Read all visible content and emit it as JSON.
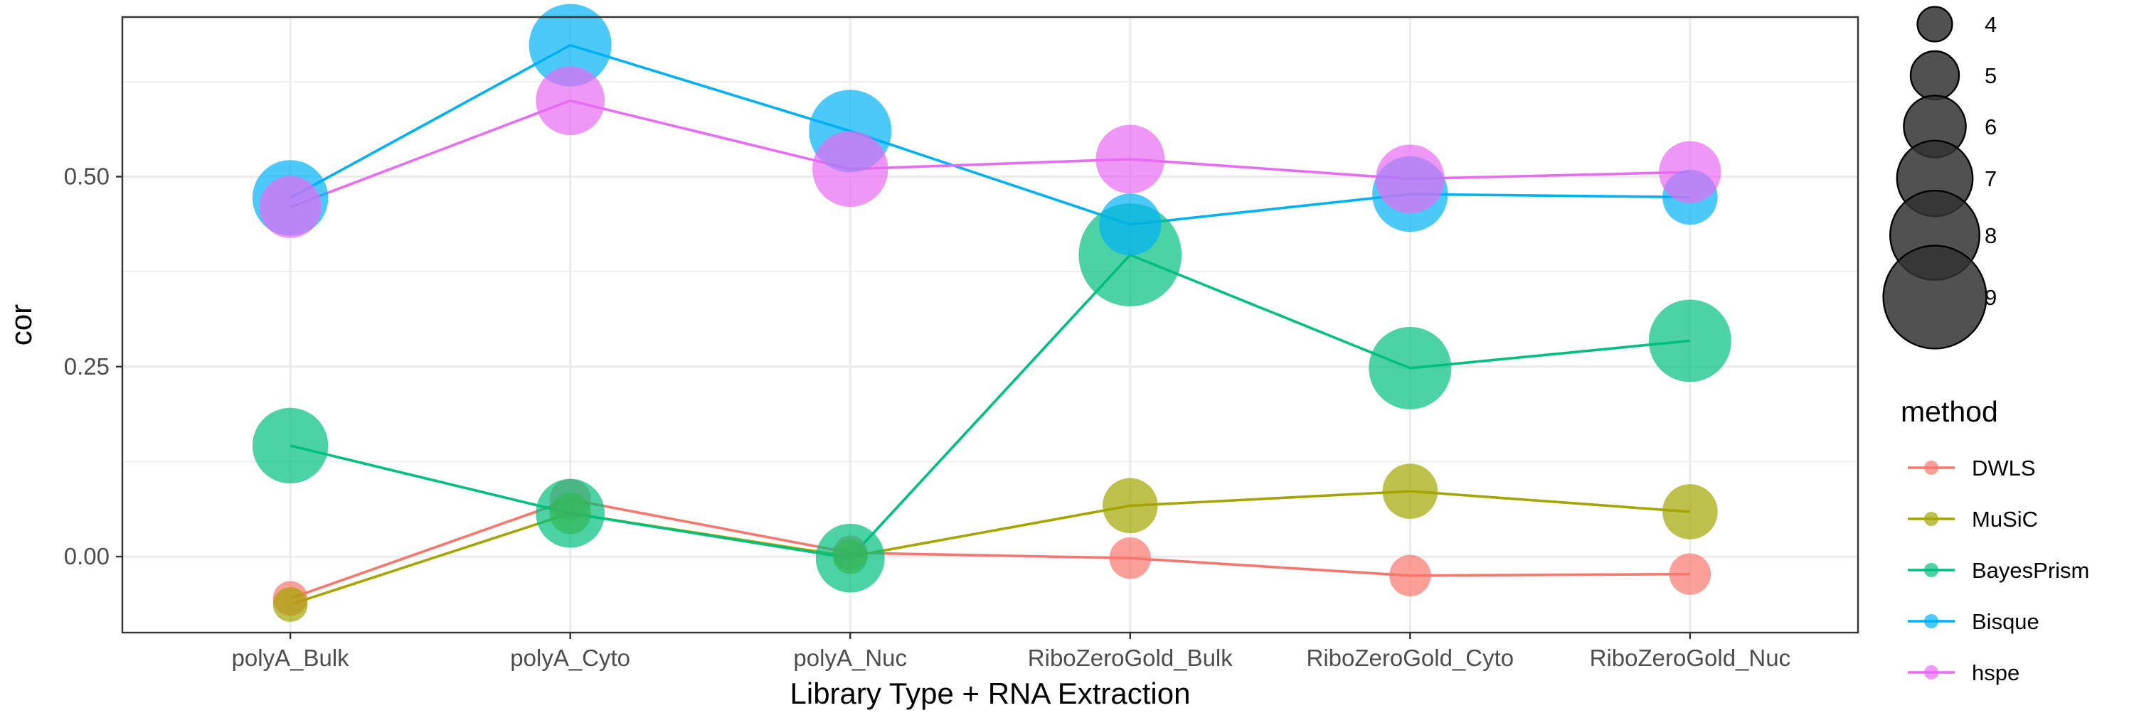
{
  "chart_data": {
    "type": "line",
    "title": "",
    "xlabel": "Library Type + RNA Extraction",
    "ylabel": "cor",
    "categories": [
      "polyA_Bulk",
      "polyA_Cyto",
      "polyA_Nuc",
      "RiboZeroGold_Bulk",
      "RiboZeroGold_Cyto",
      "RiboZeroGold_Nuc"
    ],
    "ylim": [
      -0.1,
      0.71
    ],
    "yticks": [
      0.0,
      0.25,
      0.5
    ],
    "ytick_labels": [
      "0.00",
      "0.25",
      "0.50"
    ],
    "grid": true,
    "series": [
      {
        "name": "DWLS",
        "color": "#F8766D",
        "values": [
          -0.055,
          0.075,
          0.005,
          -0.002,
          -0.025,
          -0.023
        ],
        "sizes": [
          4.0,
          4.5,
          4.0,
          4.5,
          4.5,
          4.5
        ]
      },
      {
        "name": "MuSiC",
        "color": "#A3A500",
        "values": [
          -0.063,
          0.057,
          0.0,
          0.067,
          0.086,
          0.059
        ],
        "sizes": [
          4.0,
          4.5,
          4.0,
          5.5,
          5.5,
          5.5
        ]
      },
      {
        "name": "BayesPrism",
        "color": "#00BF7D",
        "values": [
          0.146,
          0.057,
          -0.002,
          0.397,
          0.248,
          0.284
        ],
        "sizes": [
          7.0,
          6.5,
          6.5,
          9.0,
          7.5,
          7.5
        ]
      },
      {
        "name": "Bisque",
        "color": "#00B0F6",
        "values": [
          0.472,
          0.673,
          0.56,
          0.437,
          0.477,
          0.473
        ],
        "sizes": [
          7.0,
          7.5,
          7.5,
          6.0,
          7.0,
          5.5
        ]
      },
      {
        "name": "hspe",
        "color": "#E76BF3",
        "values": [
          0.46,
          0.6,
          0.51,
          0.523,
          0.497,
          0.506
        ],
        "sizes": [
          6.0,
          6.5,
          7.0,
          6.5,
          6.5,
          6.0
        ]
      }
    ],
    "size_legend": {
      "values": [
        4,
        5,
        6,
        7,
        8,
        9
      ],
      "labels": [
        "4",
        "5",
        "6",
        "7",
        "8",
        "9"
      ]
    },
    "color_legend": {
      "title": "method",
      "position": "right"
    }
  }
}
